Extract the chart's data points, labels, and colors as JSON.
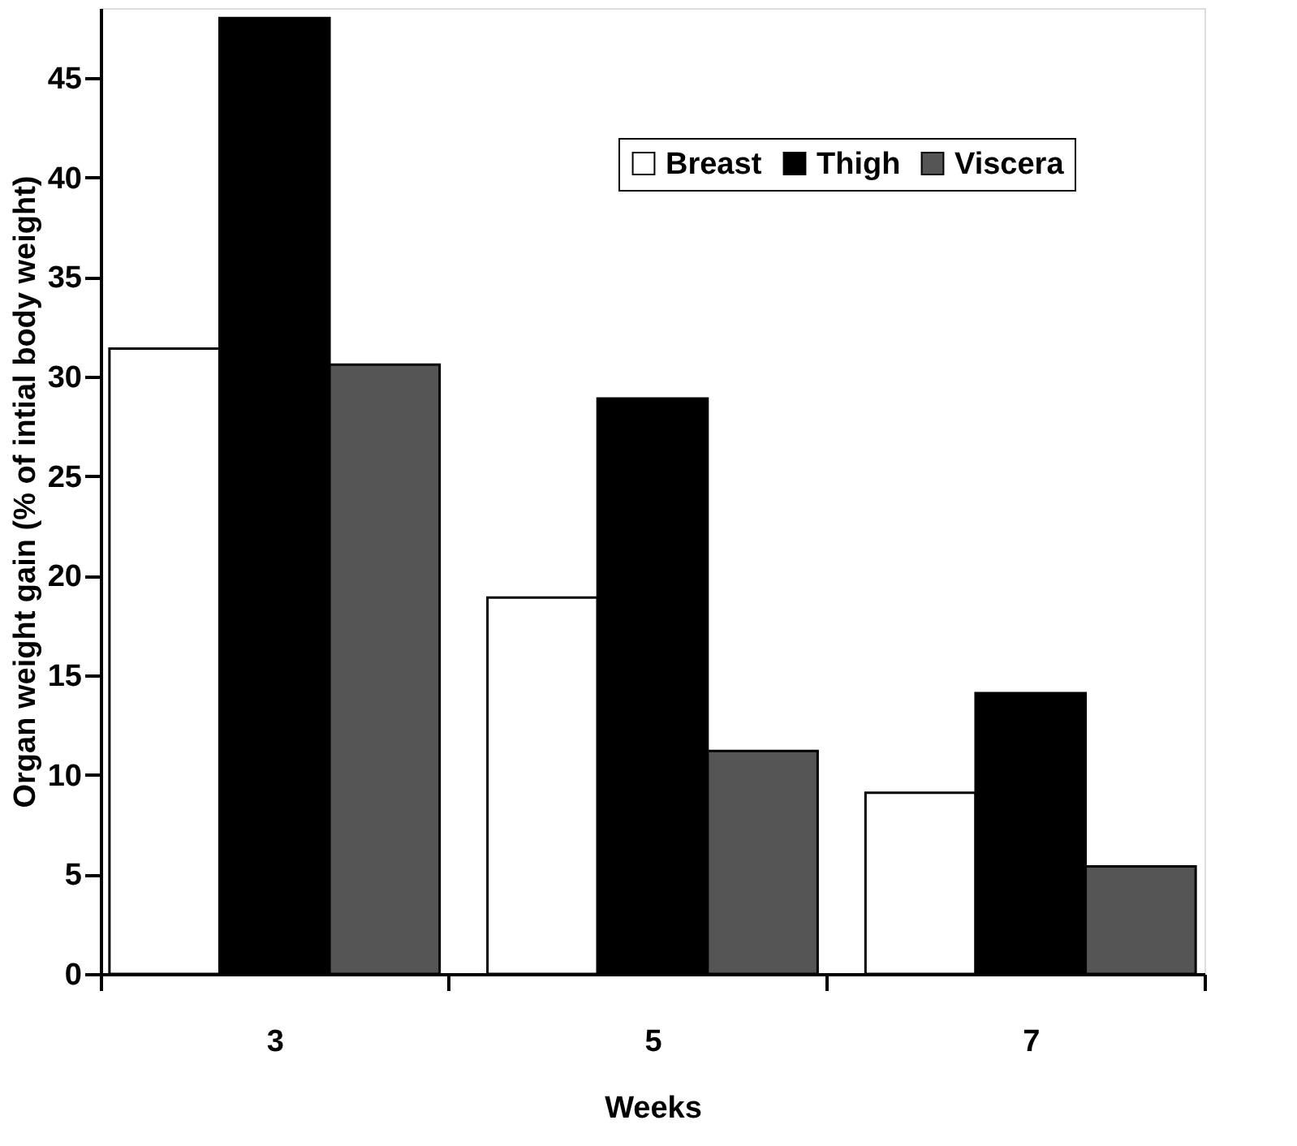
{
  "chart_data": {
    "type": "bar",
    "xlabel": "Weeks",
    "ylabel": "Organ weight gain (% of intial body weight)",
    "categories": [
      "3",
      "5",
      "7"
    ],
    "series": [
      {
        "name": "Breast",
        "color": "#ffffff",
        "values": [
          31.4,
          18.9,
          9.1
        ]
      },
      {
        "name": "Thigh",
        "color": "#000000",
        "values": [
          48.0,
          28.9,
          14.1
        ]
      },
      {
        "name": "Viscera",
        "color": "#555555",
        "values": [
          30.6,
          11.2,
          5.4
        ]
      }
    ],
    "ylim": [
      0,
      48.5
    ],
    "yticks": [
      0,
      5,
      10,
      15,
      20,
      25,
      30,
      35,
      40,
      45
    ],
    "grid": false,
    "legend": "top right"
  }
}
